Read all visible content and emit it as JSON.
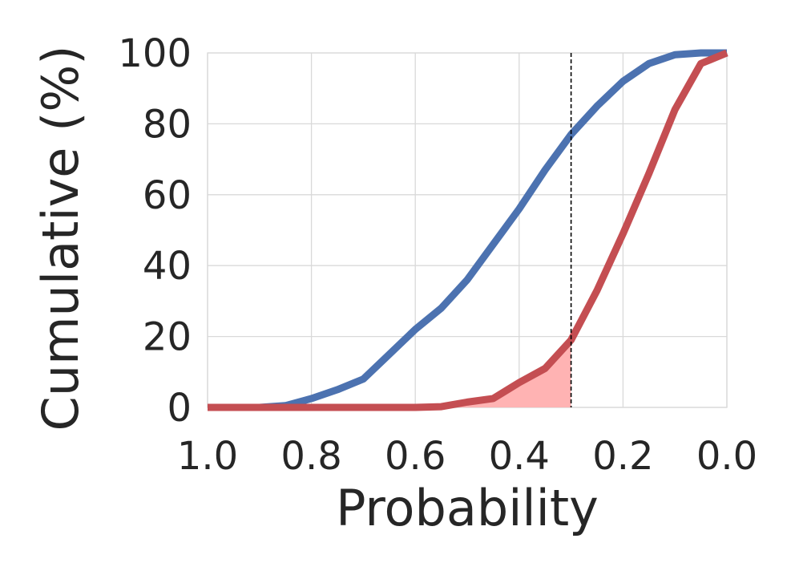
{
  "chart_data": {
    "type": "line",
    "title": "",
    "xlabel": "Probability",
    "ylabel": "Cumulative (%)",
    "xlim": [
      1.0,
      0.0
    ],
    "ylim": [
      0,
      100
    ],
    "x_reversed": true,
    "grid": true,
    "legend": "none",
    "x_ticks": [
      1.0,
      0.8,
      0.6,
      0.4,
      0.2,
      0.0
    ],
    "x_tick_labels": [
      "1.0",
      "0.8",
      "0.6",
      "0.4",
      "0.2",
      "0.0"
    ],
    "y_ticks": [
      0,
      20,
      40,
      60,
      80,
      100
    ],
    "y_tick_labels": [
      "0",
      "20",
      "40",
      "60",
      "80",
      "100"
    ],
    "threshold": {
      "x": 0.3,
      "style": "dashed",
      "color": "#000000"
    },
    "shaded_region": {
      "series_index": 1,
      "x_from": 1.0,
      "x_to": 0.3,
      "color": "#ffb3b3"
    },
    "series": [
      {
        "color": "#4c72b0",
        "x": [
          1.0,
          0.95,
          0.9,
          0.85,
          0.8,
          0.75,
          0.7,
          0.65,
          0.6,
          0.55,
          0.5,
          0.45,
          0.4,
          0.35,
          0.3,
          0.25,
          0.2,
          0.15,
          0.1,
          0.05,
          0.0
        ],
        "y": [
          0,
          0,
          0,
          0.5,
          2.5,
          5,
          8,
          15,
          22,
          28,
          36,
          46,
          56,
          67,
          77,
          85,
          92,
          97,
          99.5,
          100,
          100
        ]
      },
      {
        "color": "#c44e52",
        "x": [
          1.0,
          0.95,
          0.9,
          0.85,
          0.8,
          0.75,
          0.7,
          0.65,
          0.6,
          0.55,
          0.5,
          0.45,
          0.4,
          0.35,
          0.3,
          0.25,
          0.2,
          0.15,
          0.1,
          0.05,
          0.0
        ],
        "y": [
          0,
          0,
          0,
          0,
          0,
          0,
          0,
          0,
          0,
          0.2,
          1.5,
          2.5,
          7,
          11,
          19,
          33,
          49,
          66,
          84,
          97,
          100
        ]
      }
    ]
  }
}
